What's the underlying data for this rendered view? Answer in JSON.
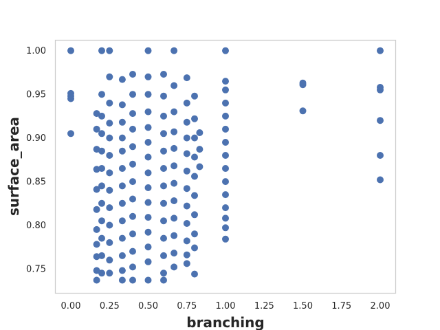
{
  "chart_data": {
    "type": "scatter",
    "xlabel": "branching",
    "ylabel": "surface_area",
    "xlim": [
      -0.1,
      2.1
    ],
    "ylim": [
      0.722,
      1.012
    ],
    "grid": false,
    "marker_color": "#4c72b0",
    "x_ticks": [
      "0.00",
      "0.25",
      "0.50",
      "0.75",
      "1.00",
      "1.25",
      "1.50",
      "1.75",
      "2.00"
    ],
    "x_tick_values": [
      0.0,
      0.25,
      0.5,
      0.75,
      1.0,
      1.25,
      1.5,
      1.75,
      2.0
    ],
    "y_ticks": [
      "0.75",
      "0.80",
      "0.85",
      "0.90",
      "0.95",
      "1.00"
    ],
    "y_tick_values": [
      0.75,
      0.8,
      0.85,
      0.9,
      0.95,
      1.0
    ],
    "points": [
      {
        "x": 0.0,
        "y": 1.0
      },
      {
        "x": 0.0,
        "y": 0.951
      },
      {
        "x": 0.0,
        "y": 0.948
      },
      {
        "x": 0.0,
        "y": 0.945
      },
      {
        "x": 0.0,
        "y": 0.905
      },
      {
        "x": 0.167,
        "y": 0.928
      },
      {
        "x": 0.167,
        "y": 0.91
      },
      {
        "x": 0.167,
        "y": 0.887
      },
      {
        "x": 0.167,
        "y": 0.864
      },
      {
        "x": 0.167,
        "y": 0.841
      },
      {
        "x": 0.167,
        "y": 0.818
      },
      {
        "x": 0.167,
        "y": 0.795
      },
      {
        "x": 0.167,
        "y": 0.778
      },
      {
        "x": 0.167,
        "y": 0.764
      },
      {
        "x": 0.167,
        "y": 0.748
      },
      {
        "x": 0.167,
        "y": 0.737
      },
      {
        "x": 0.2,
        "y": 1.0
      },
      {
        "x": 0.2,
        "y": 0.95
      },
      {
        "x": 0.2,
        "y": 0.925
      },
      {
        "x": 0.2,
        "y": 0.905
      },
      {
        "x": 0.2,
        "y": 0.885
      },
      {
        "x": 0.2,
        "y": 0.865
      },
      {
        "x": 0.2,
        "y": 0.845
      },
      {
        "x": 0.2,
        "y": 0.825
      },
      {
        "x": 0.2,
        "y": 0.805
      },
      {
        "x": 0.2,
        "y": 0.785
      },
      {
        "x": 0.2,
        "y": 0.765
      },
      {
        "x": 0.2,
        "y": 0.745
      },
      {
        "x": 0.25,
        "y": 1.0
      },
      {
        "x": 0.25,
        "y": 0.97
      },
      {
        "x": 0.25,
        "y": 0.94
      },
      {
        "x": 0.25,
        "y": 0.917
      },
      {
        "x": 0.25,
        "y": 0.9
      },
      {
        "x": 0.25,
        "y": 0.88
      },
      {
        "x": 0.25,
        "y": 0.86
      },
      {
        "x": 0.25,
        "y": 0.84
      },
      {
        "x": 0.25,
        "y": 0.82
      },
      {
        "x": 0.25,
        "y": 0.8
      },
      {
        "x": 0.25,
        "y": 0.78
      },
      {
        "x": 0.25,
        "y": 0.76
      },
      {
        "x": 0.25,
        "y": 0.745
      },
      {
        "x": 0.333,
        "y": 0.967
      },
      {
        "x": 0.333,
        "y": 0.938
      },
      {
        "x": 0.333,
        "y": 0.918
      },
      {
        "x": 0.333,
        "y": 0.9
      },
      {
        "x": 0.333,
        "y": 0.885
      },
      {
        "x": 0.333,
        "y": 0.865
      },
      {
        "x": 0.333,
        "y": 0.845
      },
      {
        "x": 0.333,
        "y": 0.825
      },
      {
        "x": 0.333,
        "y": 0.805
      },
      {
        "x": 0.333,
        "y": 0.785
      },
      {
        "x": 0.333,
        "y": 0.765
      },
      {
        "x": 0.333,
        "y": 0.748
      },
      {
        "x": 0.333,
        "y": 0.737
      },
      {
        "x": 0.4,
        "y": 0.973
      },
      {
        "x": 0.4,
        "y": 0.95
      },
      {
        "x": 0.4,
        "y": 0.928
      },
      {
        "x": 0.4,
        "y": 0.91
      },
      {
        "x": 0.4,
        "y": 0.89
      },
      {
        "x": 0.4,
        "y": 0.87
      },
      {
        "x": 0.4,
        "y": 0.85
      },
      {
        "x": 0.4,
        "y": 0.83
      },
      {
        "x": 0.4,
        "y": 0.81
      },
      {
        "x": 0.4,
        "y": 0.79
      },
      {
        "x": 0.4,
        "y": 0.77
      },
      {
        "x": 0.4,
        "y": 0.752
      },
      {
        "x": 0.4,
        "y": 0.737
      },
      {
        "x": 0.5,
        "y": 1.0
      },
      {
        "x": 0.5,
        "y": 0.97
      },
      {
        "x": 0.5,
        "y": 0.95
      },
      {
        "x": 0.5,
        "y": 0.93
      },
      {
        "x": 0.5,
        "y": 0.912
      },
      {
        "x": 0.5,
        "y": 0.895
      },
      {
        "x": 0.5,
        "y": 0.878
      },
      {
        "x": 0.5,
        "y": 0.86
      },
      {
        "x": 0.5,
        "y": 0.843
      },
      {
        "x": 0.5,
        "y": 0.826
      },
      {
        "x": 0.5,
        "y": 0.809
      },
      {
        "x": 0.5,
        "y": 0.792
      },
      {
        "x": 0.5,
        "y": 0.775
      },
      {
        "x": 0.5,
        "y": 0.758
      },
      {
        "x": 0.5,
        "y": 0.737
      },
      {
        "x": 0.6,
        "y": 0.973
      },
      {
        "x": 0.6,
        "y": 0.948
      },
      {
        "x": 0.6,
        "y": 0.925
      },
      {
        "x": 0.6,
        "y": 0.905
      },
      {
        "x": 0.6,
        "y": 0.885
      },
      {
        "x": 0.6,
        "y": 0.865
      },
      {
        "x": 0.6,
        "y": 0.845
      },
      {
        "x": 0.6,
        "y": 0.825
      },
      {
        "x": 0.6,
        "y": 0.805
      },
      {
        "x": 0.6,
        "y": 0.785
      },
      {
        "x": 0.6,
        "y": 0.765
      },
      {
        "x": 0.6,
        "y": 0.745
      },
      {
        "x": 0.6,
        "y": 0.737
      },
      {
        "x": 0.667,
        "y": 1.0
      },
      {
        "x": 0.667,
        "y": 0.96
      },
      {
        "x": 0.667,
        "y": 0.93
      },
      {
        "x": 0.667,
        "y": 0.907
      },
      {
        "x": 0.667,
        "y": 0.888
      },
      {
        "x": 0.667,
        "y": 0.868
      },
      {
        "x": 0.667,
        "y": 0.848
      },
      {
        "x": 0.667,
        "y": 0.828
      },
      {
        "x": 0.667,
        "y": 0.808
      },
      {
        "x": 0.667,
        "y": 0.788
      },
      {
        "x": 0.667,
        "y": 0.768
      },
      {
        "x": 0.667,
        "y": 0.752
      },
      {
        "x": 0.75,
        "y": 0.969
      },
      {
        "x": 0.75,
        "y": 0.94
      },
      {
        "x": 0.75,
        "y": 0.918
      },
      {
        "x": 0.75,
        "y": 0.9
      },
      {
        "x": 0.75,
        "y": 0.882
      },
      {
        "x": 0.75,
        "y": 0.862
      },
      {
        "x": 0.75,
        "y": 0.842
      },
      {
        "x": 0.75,
        "y": 0.822
      },
      {
        "x": 0.75,
        "y": 0.802
      },
      {
        "x": 0.75,
        "y": 0.782
      },
      {
        "x": 0.75,
        "y": 0.766
      },
      {
        "x": 0.75,
        "y": 0.756
      },
      {
        "x": 0.8,
        "y": 0.948
      },
      {
        "x": 0.8,
        "y": 0.922
      },
      {
        "x": 0.8,
        "y": 0.9
      },
      {
        "x": 0.8,
        "y": 0.878
      },
      {
        "x": 0.8,
        "y": 0.856
      },
      {
        "x": 0.8,
        "y": 0.834
      },
      {
        "x": 0.8,
        "y": 0.812
      },
      {
        "x": 0.8,
        "y": 0.79
      },
      {
        "x": 0.8,
        "y": 0.774
      },
      {
        "x": 0.8,
        "y": 0.744
      },
      {
        "x": 0.833,
        "y": 0.906
      },
      {
        "x": 0.833,
        "y": 0.887
      },
      {
        "x": 0.833,
        "y": 0.867
      },
      {
        "x": 1.0,
        "y": 1.0
      },
      {
        "x": 1.0,
        "y": 0.965
      },
      {
        "x": 1.0,
        "y": 0.955
      },
      {
        "x": 1.0,
        "y": 0.94
      },
      {
        "x": 1.0,
        "y": 0.925
      },
      {
        "x": 1.0,
        "y": 0.91
      },
      {
        "x": 1.0,
        "y": 0.895
      },
      {
        "x": 1.0,
        "y": 0.88
      },
      {
        "x": 1.0,
        "y": 0.865
      },
      {
        "x": 1.0,
        "y": 0.85
      },
      {
        "x": 1.0,
        "y": 0.835
      },
      {
        "x": 1.0,
        "y": 0.82
      },
      {
        "x": 1.0,
        "y": 0.808
      },
      {
        "x": 1.0,
        "y": 0.797
      },
      {
        "x": 1.0,
        "y": 0.784
      },
      {
        "x": 1.5,
        "y": 0.963
      },
      {
        "x": 1.5,
        "y": 0.961
      },
      {
        "x": 1.5,
        "y": 0.931
      },
      {
        "x": 2.0,
        "y": 1.0
      },
      {
        "x": 2.0,
        "y": 0.958
      },
      {
        "x": 2.0,
        "y": 0.955
      },
      {
        "x": 2.0,
        "y": 0.92
      },
      {
        "x": 2.0,
        "y": 0.88
      },
      {
        "x": 2.0,
        "y": 0.852
      }
    ]
  }
}
